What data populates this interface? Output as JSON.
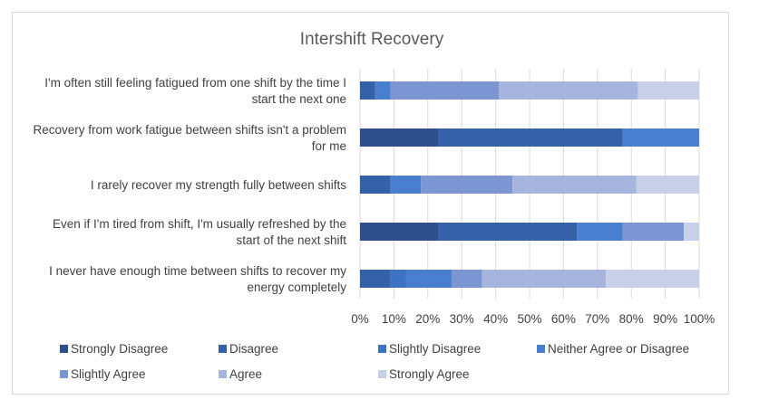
{
  "chart_data": {
    "type": "bar",
    "orientation": "horizontal",
    "stacked": "100%",
    "title": "Intershift Recovery",
    "xlabel": "",
    "ylabel": "",
    "xlim": [
      0,
      100
    ],
    "x_ticks": [
      "0%",
      "10%",
      "20%",
      "30%",
      "40%",
      "50%",
      "60%",
      "70%",
      "80%",
      "90%",
      "100%"
    ],
    "grid": true,
    "legend_position": "bottom",
    "categories": [
      {
        "line1": "I'm often still feeling fatigued from one shift by the time I",
        "line2": "start the next one"
      },
      {
        "line1": "Recovery from work fatigue between shifts isn't a problem",
        "line2": "for me"
      },
      {
        "line1": "I rarely recover my strength fully between shifts",
        "line2": ""
      },
      {
        "line1": "Even if I'm tired from shift, I'm usually refreshed by the",
        "line2": "start of the next shift"
      },
      {
        "line1": "I never have enough time between shifts to recover my",
        "line2": "energy completely"
      }
    ],
    "series": [
      {
        "name": "Strongly Disagree",
        "color": "#2f4f8a",
        "values": [
          0,
          23,
          0,
          23,
          0
        ]
      },
      {
        "name": "Disagree",
        "color": "#3561a8",
        "values": [
          4.5,
          54.5,
          9,
          41,
          9
        ]
      },
      {
        "name": "Slightly Disagree",
        "color": "#3e73c4",
        "values": [
          0,
          0,
          0,
          0,
          4.5
        ]
      },
      {
        "name": "Neither Agree or Disagree",
        "color": "#4a7fd0",
        "values": [
          4.5,
          22.5,
          9,
          13.5,
          13.5
        ]
      },
      {
        "name": "Slightly Agree",
        "color": "#7c96d3",
        "values": [
          32,
          0,
          27,
          18,
          9
        ]
      },
      {
        "name": "Agree",
        "color": "#a7b5de",
        "values": [
          41,
          0,
          36.5,
          0,
          36.5
        ]
      },
      {
        "name": "Strongly Agree",
        "color": "#c7cfe9",
        "values": [
          18,
          0,
          18.5,
          4.5,
          27.5
        ]
      }
    ]
  }
}
